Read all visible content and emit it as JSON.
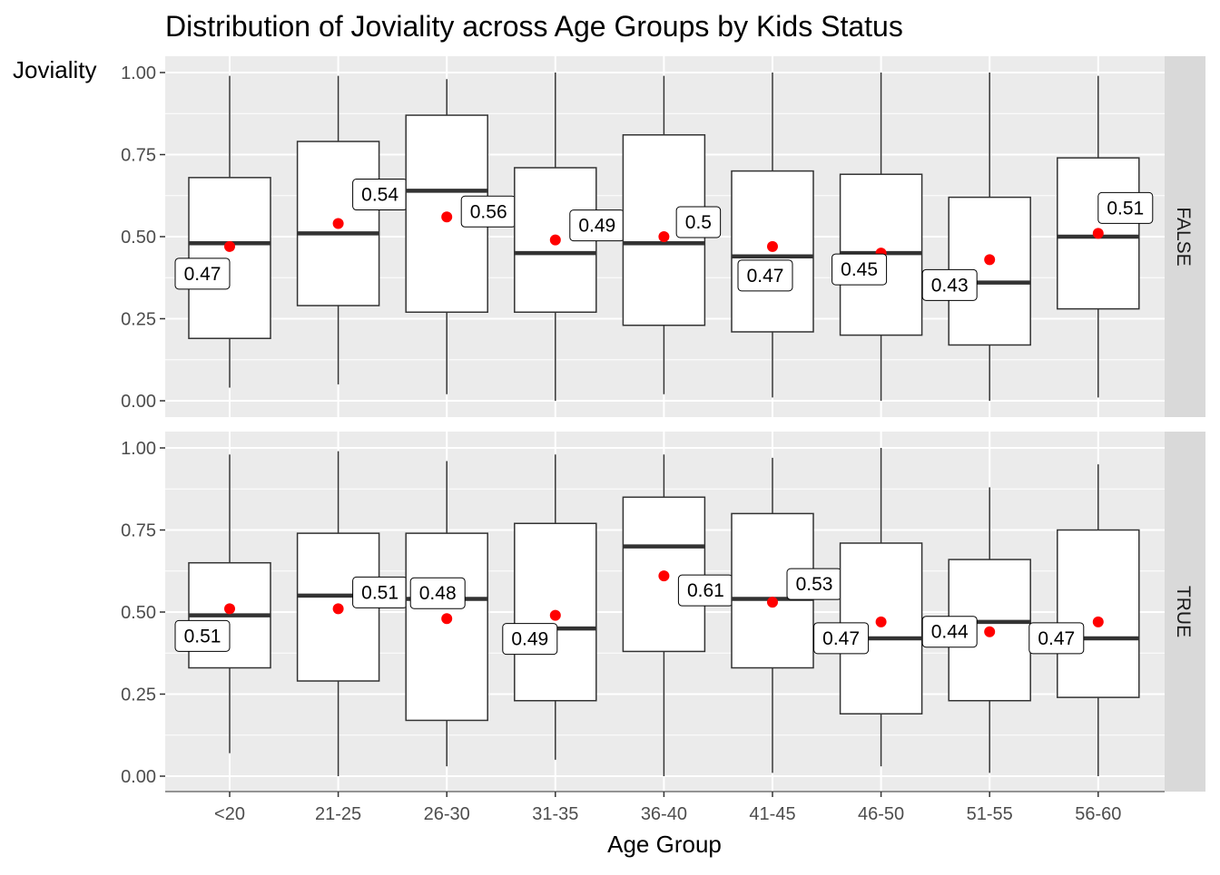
{
  "chart_data": {
    "type": "boxplot",
    "title": "Distribution of Joviality across Age Groups by Kids Status",
    "xlabel": "Age Group",
    "ylabel": "Joviality",
    "ylim": [
      0,
      1
    ],
    "y_ticks": [
      "0.00",
      "0.25",
      "0.50",
      "0.75",
      "1.00"
    ],
    "categories": [
      "<20",
      "21-25",
      "26-30",
      "31-35",
      "36-40",
      "41-45",
      "46-50",
      "51-55",
      "56-60"
    ],
    "grid": true,
    "colors": {
      "panel_background": "#ebebeb",
      "grid": "#ffffff",
      "strip_background": "#d9d9d9",
      "box_fill": "#ffffff",
      "box_stroke": "#333333",
      "mean_point": "#ff0000"
    },
    "facets": [
      {
        "label": "FALSE",
        "groups": [
          {
            "category": "<20",
            "min": 0.04,
            "q1": 0.19,
            "median": 0.48,
            "q3": 0.68,
            "max": 0.99,
            "mean": 0.47,
            "mean_label": "0.47"
          },
          {
            "category": "21-25",
            "min": 0.05,
            "q1": 0.29,
            "median": 0.51,
            "q3": 0.79,
            "max": 0.99,
            "mean": 0.54,
            "mean_label": "0.54"
          },
          {
            "category": "26-30",
            "min": 0.02,
            "q1": 0.27,
            "median": 0.64,
            "q3": 0.87,
            "max": 0.98,
            "mean": 0.56,
            "mean_label": "0.56"
          },
          {
            "category": "31-35",
            "min": 0.0,
            "q1": 0.27,
            "median": 0.45,
            "q3": 0.71,
            "max": 1.0,
            "mean": 0.49,
            "mean_label": "0.49"
          },
          {
            "category": "36-40",
            "min": 0.02,
            "q1": 0.23,
            "median": 0.48,
            "q3": 0.81,
            "max": 0.99,
            "mean": 0.5,
            "mean_label": "0.5"
          },
          {
            "category": "41-45",
            "min": 0.01,
            "q1": 0.21,
            "median": 0.44,
            "q3": 0.7,
            "max": 1.0,
            "mean": 0.47,
            "mean_label": "0.47"
          },
          {
            "category": "46-50",
            "min": 0.0,
            "q1": 0.2,
            "median": 0.45,
            "q3": 0.69,
            "max": 1.0,
            "mean": 0.45,
            "mean_label": "0.45"
          },
          {
            "category": "51-55",
            "min": 0.0,
            "q1": 0.17,
            "median": 0.36,
            "q3": 0.62,
            "max": 1.0,
            "mean": 0.43,
            "mean_label": "0.43"
          },
          {
            "category": "56-60",
            "min": 0.01,
            "q1": 0.28,
            "median": 0.5,
            "q3": 0.74,
            "max": 0.99,
            "mean": 0.51,
            "mean_label": "0.51"
          }
        ]
      },
      {
        "label": "TRUE",
        "groups": [
          {
            "category": "<20",
            "min": 0.07,
            "q1": 0.33,
            "median": 0.49,
            "q3": 0.65,
            "max": 0.98,
            "mean": 0.51,
            "mean_label": "0.51"
          },
          {
            "category": "21-25",
            "min": 0.0,
            "q1": 0.29,
            "median": 0.55,
            "q3": 0.74,
            "max": 0.99,
            "mean": 0.51,
            "mean_label": "0.51"
          },
          {
            "category": "26-30",
            "min": 0.03,
            "q1": 0.17,
            "median": 0.54,
            "q3": 0.74,
            "max": 0.96,
            "mean": 0.48,
            "mean_label": "0.48"
          },
          {
            "category": "31-35",
            "min": 0.05,
            "q1": 0.23,
            "median": 0.45,
            "q3": 0.77,
            "max": 0.98,
            "mean": 0.49,
            "mean_label": "0.49"
          },
          {
            "category": "36-40",
            "min": 0.0,
            "q1": 0.38,
            "median": 0.7,
            "q3": 0.85,
            "max": 0.98,
            "mean": 0.61,
            "mean_label": "0.61"
          },
          {
            "category": "41-45",
            "min": 0.01,
            "q1": 0.33,
            "median": 0.54,
            "q3": 0.8,
            "max": 0.97,
            "mean": 0.53,
            "mean_label": "0.53"
          },
          {
            "category": "46-50",
            "min": 0.03,
            "q1": 0.19,
            "median": 0.42,
            "q3": 0.71,
            "max": 1.0,
            "mean": 0.47,
            "mean_label": "0.47"
          },
          {
            "category": "51-55",
            "min": 0.01,
            "q1": 0.23,
            "median": 0.47,
            "q3": 0.66,
            "max": 0.88,
            "mean": 0.44,
            "mean_label": "0.44"
          },
          {
            "category": "56-60",
            "min": 0.0,
            "q1": 0.24,
            "median": 0.42,
            "q3": 0.75,
            "max": 0.95,
            "mean": 0.47,
            "mean_label": "0.47"
          }
        ]
      }
    ]
  }
}
